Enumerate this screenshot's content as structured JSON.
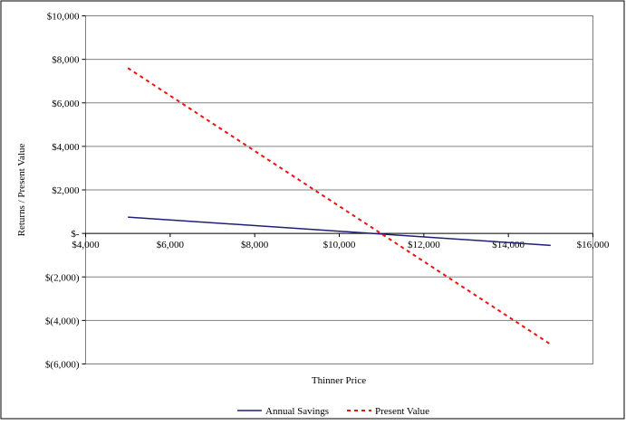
{
  "chart_data": {
    "type": "line",
    "title": "",
    "xlabel": "Thinner Price",
    "ylabel": "Returns / Present Value",
    "xlim": [
      4000,
      16000
    ],
    "ylim": [
      -6000,
      10000
    ],
    "x_ticks": [
      4000,
      6000,
      8000,
      10000,
      12000,
      14000,
      16000
    ],
    "x_tick_labels": [
      "$4,000",
      "$6,000",
      "$8,000",
      "$10,000",
      "$12,000",
      "$14,000",
      "$16,000"
    ],
    "y_ticks": [
      10000,
      8000,
      6000,
      4000,
      2000,
      0,
      -2000,
      -4000,
      -6000
    ],
    "y_tick_labels": [
      "$10,000",
      "$8,000",
      "$6,000",
      "$4,000",
      "$2,000",
      "$-",
      "$(2,000)",
      "$(4,000)",
      "$(6,000)"
    ],
    "grid": "horizontal",
    "legend_position": "bottom",
    "series": [
      {
        "name": "Annual Savings",
        "color": "#1f1f7a",
        "style": "solid",
        "x": [
          5000,
          15000
        ],
        "y": [
          750,
          -550
        ]
      },
      {
        "name": "Present Value",
        "color": "#ee1111",
        "style": "dashed",
        "x": [
          5000,
          15000
        ],
        "y": [
          7600,
          -5100
        ]
      }
    ]
  }
}
